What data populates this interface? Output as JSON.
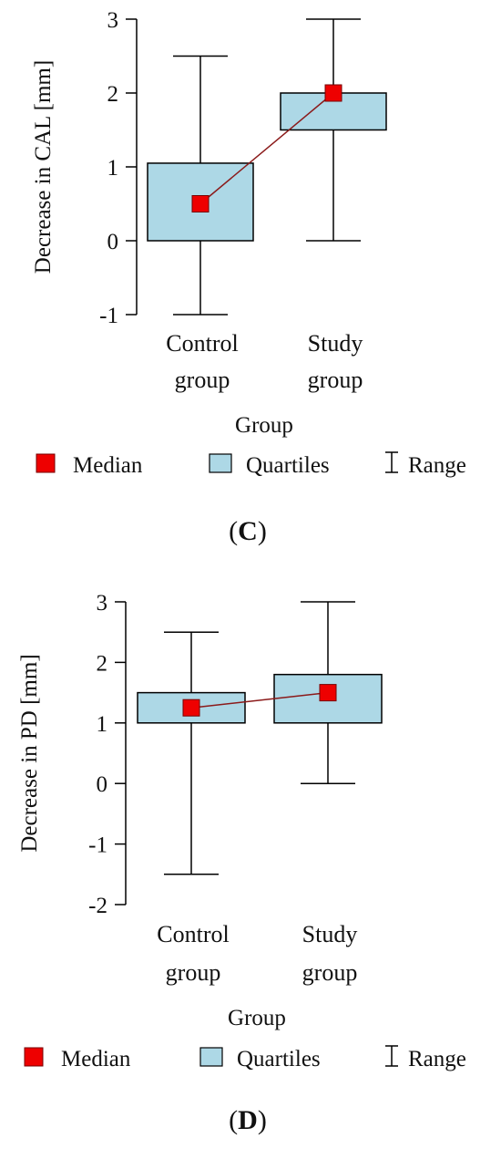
{
  "chart_data": [
    {
      "type": "box",
      "panel_label": "(C)",
      "ylabel": "Decrease in CAL [mm]",
      "xlabel": "Group",
      "ylim": [
        -1,
        3
      ],
      "yticks": [
        -1,
        0,
        1,
        2,
        3
      ],
      "categories": [
        {
          "line1": "Control",
          "line2": "group"
        },
        {
          "line1": "Study",
          "line2": "group"
        }
      ],
      "boxes": [
        {
          "min": -1,
          "q1": 0,
          "median": 0.5,
          "q3": 1.05,
          "max": 2.5
        },
        {
          "min": 0,
          "q1": 1.5,
          "median": 2,
          "q3": 2,
          "max": 3
        }
      ],
      "legend": [
        "Median",
        "Quartiles",
        "Range"
      ],
      "colors": {
        "median": "#ee0000",
        "box": "#add8e6",
        "line": "#8b1a1a"
      }
    },
    {
      "type": "box",
      "panel_label": "(D)",
      "ylabel": "Decrease in PD [mm]",
      "xlabel": "Group",
      "ylim": [
        -2,
        3
      ],
      "yticks": [
        -2,
        -1,
        0,
        1,
        2,
        3
      ],
      "categories": [
        {
          "line1": "Control",
          "line2": "group"
        },
        {
          "line1": "Study",
          "line2": "group"
        }
      ],
      "boxes": [
        {
          "min": -1.5,
          "q1": 1,
          "median": 1.25,
          "q3": 1.5,
          "max": 2.5
        },
        {
          "min": 0,
          "q1": 1,
          "median": 1.5,
          "q3": 1.8,
          "max": 3
        }
      ],
      "legend": [
        "Median",
        "Quartiles",
        "Range"
      ],
      "colors": {
        "median": "#ee0000",
        "box": "#add8e6",
        "line": "#8b1a1a"
      }
    }
  ]
}
